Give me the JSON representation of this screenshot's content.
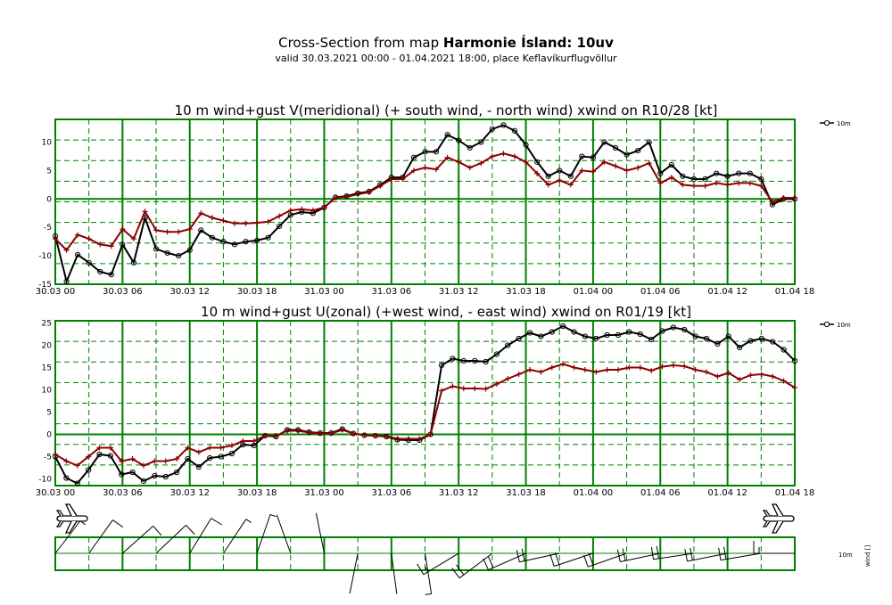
{
  "header": {
    "title_prefix": "Cross-Section from map ",
    "title_bold": "Harmonie Ísland: 10uv",
    "subtitle": "valid 30.03.2021 00:00 - 01.04.2021 18:00, place Keflavíkurflugvöllur"
  },
  "colors": {
    "grid": "#008000",
    "wind": "#000000",
    "gust": "#8b0000"
  },
  "chart_data": [
    {
      "type": "line",
      "title": "10 m wind+gust V(meridional) (+ south wind, - north wind) xwind on R10/28 [kt]",
      "x_ticks": [
        "30.03 00",
        "30.03 06",
        "30.03 12",
        "30.03 18",
        "31.03 00",
        "31.03 06",
        "31.03 12",
        "31.03 18",
        "01.04 00",
        "01.04 06",
        "01.04 12",
        "01.04 18"
      ],
      "ylim": [
        -15,
        14
      ],
      "y_ticks": [
        -15,
        -10,
        -5,
        0,
        5,
        10
      ],
      "grid": true,
      "legend": [
        "10m"
      ],
      "series": [
        {
          "name": "10m",
          "style": "wind",
          "values": [
            -6.5,
            -14.5,
            -9.8,
            -11.2,
            -12.8,
            -13.3,
            -8,
            -11.2,
            -3.3,
            -8.8,
            -9.5,
            -10,
            -9,
            -5.5,
            -6.8,
            -7.5,
            -8,
            -7.5,
            -7.3,
            -6.8,
            -4.8,
            -2.8,
            -2.3,
            -2.5,
            -1.5,
            0.3,
            0.5,
            1,
            1.3,
            2.5,
            3.8,
            3.8,
            7.3,
            8.3,
            8.3,
            11.3,
            10.3,
            9,
            10,
            12.3,
            13,
            12,
            9.5,
            6.5,
            4,
            5,
            4,
            7.5,
            7.3,
            10,
            9,
            7.8,
            8.5,
            10,
            4.5,
            6,
            4,
            3.5,
            3.5,
            4.5,
            4,
            4.5,
            4.5,
            3.5,
            -1,
            0,
            0
          ]
        },
        {
          "name": "",
          "style": "gust",
          "values": [
            -7,
            -9,
            -6.3,
            -7,
            -8,
            -8.3,
            -5.3,
            -7,
            -2.2,
            -5.5,
            -5.8,
            -5.8,
            -5.3,
            -2.5,
            -3.3,
            -3.8,
            -4.3,
            -4.3,
            -4.2,
            -4,
            -3,
            -2,
            -1.8,
            -2,
            -1.5,
            0.2,
            0.4,
            0.8,
            1.2,
            2.3,
            3.5,
            3.5,
            5,
            5.5,
            5.2,
            7.3,
            6.5,
            5.5,
            6.3,
            7.5,
            8,
            7.5,
            6.5,
            4.5,
            2.5,
            3.3,
            2.5,
            5,
            4.8,
            6.5,
            5.8,
            5,
            5.5,
            6.3,
            2.8,
            3.8,
            2.5,
            2.3,
            2.3,
            2.8,
            2.5,
            2.8,
            2.8,
            2.3,
            -0.5,
            0.2,
            0.2
          ]
        }
      ]
    },
    {
      "type": "line",
      "title": "10 m wind+gust U(zonal) (+west wind, - east wind) xwind on R01/19 [kt]",
      "x_ticks": [
        "30.03 00",
        "30.03 06",
        "30.03 12",
        "30.03 18",
        "31.03 00",
        "31.03 06",
        "31.03 12",
        "31.03 18",
        "01.04 00",
        "01.04 06",
        "01.04 12",
        "01.04 18"
      ],
      "ylim": [
        -11.5,
        25.5
      ],
      "y_ticks": [
        -10,
        -5,
        0,
        5,
        10,
        15,
        20,
        25
      ],
      "grid": true,
      "legend": [
        "10m"
      ],
      "series": [
        {
          "name": "10m",
          "style": "wind",
          "values": [
            -5,
            -9.8,
            -11,
            -8,
            -4.5,
            -4.8,
            -9,
            -8.5,
            -10.5,
            -9.3,
            -9.5,
            -8.5,
            -5.5,
            -7.3,
            -5.3,
            -5,
            -4.3,
            -2.3,
            -2.5,
            -0.3,
            -0.5,
            1,
            1,
            0.5,
            0.3,
            0.3,
            1.2,
            0.2,
            -0.2,
            -0.3,
            -0.5,
            -1.2,
            -1.3,
            -1.3,
            0,
            15.5,
            17,
            16.5,
            16.5,
            16.3,
            18,
            20,
            21.5,
            22.8,
            22,
            23,
            24.3,
            23,
            22,
            21.5,
            22.3,
            22.3,
            23,
            22.5,
            21.3,
            23.2,
            24,
            23.5,
            22,
            21.5,
            20.3,
            22,
            19.5,
            21,
            21.5,
            20.8,
            19,
            16.5
          ]
        },
        {
          "name": "",
          "style": "gust",
          "values": [
            -4.5,
            -6,
            -7,
            -5,
            -3,
            -3,
            -6,
            -5.5,
            -7,
            -6,
            -6,
            -5.5,
            -3,
            -4,
            -3,
            -3,
            -2.5,
            -1.5,
            -1.5,
            -0.3,
            -0.3,
            0.8,
            0.8,
            0.4,
            0.2,
            0.2,
            1,
            0.2,
            -0.2,
            -0.3,
            -0.4,
            -1,
            -1,
            -1,
            0,
            9.8,
            10.8,
            10.3,
            10.3,
            10.2,
            11.3,
            12.5,
            13.5,
            14.5,
            14,
            15,
            15.8,
            15,
            14.5,
            14,
            14.5,
            14.5,
            15,
            15,
            14.3,
            15.2,
            15.5,
            15.3,
            14.5,
            14,
            13,
            13.8,
            12.3,
            13.3,
            13.5,
            13,
            12,
            10.5
          ]
        }
      ]
    }
  ],
  "wind_legend": {
    "label": "10m",
    "rot_label": "wind []"
  }
}
